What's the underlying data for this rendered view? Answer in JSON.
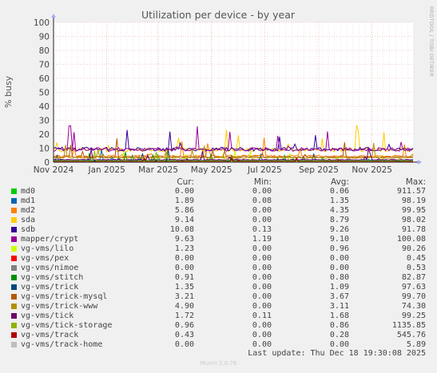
{
  "chart_data": {
    "type": "line",
    "title": "Utilization per device - by year",
    "ylabel": "% busy",
    "ylim": [
      0,
      100
    ],
    "yticks": [
      "0",
      "10",
      "20",
      "30",
      "40",
      "50",
      "60",
      "70",
      "80",
      "90",
      "100"
    ],
    "xticks": [
      "Nov 2024",
      "Jan 2025",
      "Mar 2025",
      "May 2025",
      "Jul 2025",
      "Sep 2025",
      "Nov 2025"
    ],
    "x_range": [
      "2024-11-01",
      "2025-12-18"
    ],
    "side_label": "RRDTOOL / TOBI OETIKER",
    "legend_headers": {
      "cur": "Cur:",
      "min": "Min:",
      "avg": "Avg:",
      "max": "Max:"
    },
    "series": [
      {
        "name": "md0",
        "color": "#00cc00",
        "cur": "0.00",
        "min": "0.00",
        "avg": "0.06",
        "max": "911.57"
      },
      {
        "name": "md1",
        "color": "#0066b3",
        "cur": "1.89",
        "min": "0.08",
        "avg": "1.35",
        "max": "98.19"
      },
      {
        "name": "md2",
        "color": "#ff8000",
        "cur": "5.86",
        "min": "0.00",
        "avg": "4.35",
        "max": "99.95"
      },
      {
        "name": "sda",
        "color": "#ffcc00",
        "cur": "9.14",
        "min": "0.00",
        "avg": "8.79",
        "max": "98.02"
      },
      {
        "name": "sdb",
        "color": "#330099",
        "cur": "10.08",
        "min": "0.13",
        "avg": "9.26",
        "max": "91.78"
      },
      {
        "name": "mapper/crypt",
        "color": "#990099",
        "cur": "9.63",
        "min": "1.19",
        "avg": "9.10",
        "max": "100.08"
      },
      {
        "name": "vg-vms/lilo",
        "color": "#ccff00",
        "cur": "1.23",
        "min": "0.00",
        "avg": "0.96",
        "max": "90.26"
      },
      {
        "name": "vg-vms/pex",
        "color": "#ff0000",
        "cur": "0.00",
        "min": "0.00",
        "avg": "0.00",
        "max": "0.45"
      },
      {
        "name": "vg-vms/nimoe",
        "color": "#808080",
        "cur": "0.00",
        "min": "0.00",
        "avg": "0.00",
        "max": "0.53"
      },
      {
        "name": "vg-vms/stitch",
        "color": "#008f00",
        "cur": "0.91",
        "min": "0.00",
        "avg": "0.80",
        "max": "82.87"
      },
      {
        "name": "vg-vms/trick",
        "color": "#00487d",
        "cur": "1.35",
        "min": "0.00",
        "avg": "1.09",
        "max": "97.63"
      },
      {
        "name": "vg-vms/trick-mysql",
        "color": "#b35a00",
        "cur": "3.21",
        "min": "0.00",
        "avg": "3.67",
        "max": "99.70"
      },
      {
        "name": "vg-vms/trick-www",
        "color": "#b38f00",
        "cur": "4.90",
        "min": "0.00",
        "avg": "3.11",
        "max": "74.30"
      },
      {
        "name": "vg-vms/tick",
        "color": "#6b006b",
        "cur": "1.72",
        "min": "0.11",
        "avg": "1.68",
        "max": "99.25"
      },
      {
        "name": "vg-vms/tick-storage",
        "color": "#8fb300",
        "cur": "0.96",
        "min": "0.00",
        "avg": "0.86",
        "max": "1135.85"
      },
      {
        "name": "vg-vms/track",
        "color": "#b30000",
        "cur": "0.43",
        "min": "0.00",
        "avg": "0.28",
        "max": "545.76"
      },
      {
        "name": "vg-vms/track-home",
        "color": "#bebebe",
        "cur": "0.00",
        "min": "0.00",
        "avg": "0.00",
        "max": "5.89"
      }
    ]
  },
  "footer": {
    "last_update": "Last update: Thu Dec 18 19:30:08 2025",
    "munin": "Munin 2.0.76"
  }
}
